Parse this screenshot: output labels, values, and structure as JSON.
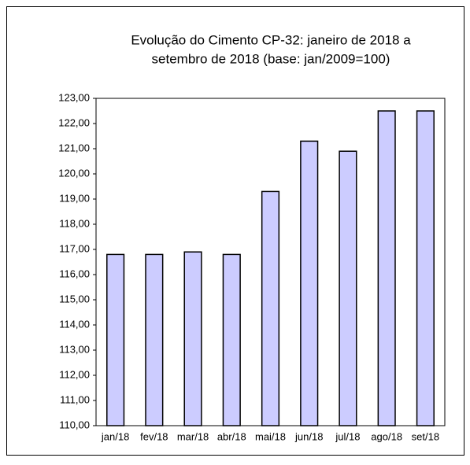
{
  "chart_data": {
    "type": "bar",
    "title": [
      "Evolução do Cimento CP-32: janeiro de 2018 a",
      "setembro de 2018 (base: jan/2009=100)"
    ],
    "categories": [
      "jan/18",
      "fev/18",
      "mar/18",
      "abr/18",
      "mai/18",
      "jun/18",
      "jul/18",
      "ago/18",
      "set/18"
    ],
    "values": [
      116.8,
      116.8,
      116.9,
      116.8,
      119.3,
      121.3,
      120.9,
      122.5,
      122.5
    ],
    "color": "#ccccff",
    "ylim": [
      110,
      123
    ],
    "yticks": [
      {
        "value": 110,
        "label": "110,00"
      },
      {
        "value": 111,
        "label": "111,00"
      },
      {
        "value": 112,
        "label": "112,00"
      },
      {
        "value": 113,
        "label": "113,00"
      },
      {
        "value": 114,
        "label": "114,00"
      },
      {
        "value": 115,
        "label": "115,00"
      },
      {
        "value": 116,
        "label": "116,00"
      },
      {
        "value": 117,
        "label": "117,00"
      },
      {
        "value": 118,
        "label": "118,00"
      },
      {
        "value": 119,
        "label": "119,00"
      },
      {
        "value": 120,
        "label": "120,00"
      },
      {
        "value": 121,
        "label": "121,00"
      },
      {
        "value": 122,
        "label": "122,00"
      },
      {
        "value": 123,
        "label": "123,00"
      }
    ],
    "grid": false
  }
}
